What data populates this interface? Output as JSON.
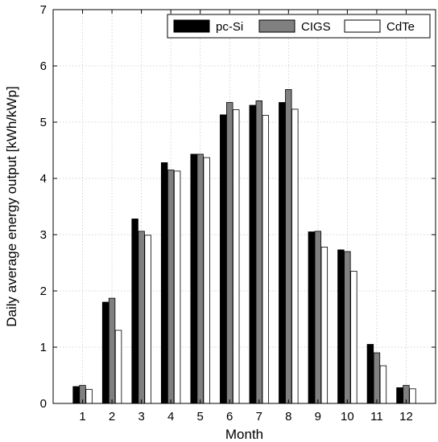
{
  "chart_data": {
    "type": "bar",
    "xlabel": "Month",
    "ylabel": "Daily average energy output [kWh/kWp]",
    "categories": [
      "1",
      "2",
      "3",
      "4",
      "5",
      "6",
      "7",
      "8",
      "9",
      "10",
      "11",
      "12"
    ],
    "ylim": [
      0,
      7
    ],
    "yticks": [
      "0",
      "1",
      "2",
      "3",
      "4",
      "5",
      "6",
      "7"
    ],
    "grid": true,
    "legend_position": "top-right",
    "series": [
      {
        "name": "pc-Si",
        "color": "#000000",
        "values": [
          0.3,
          1.8,
          3.28,
          4.28,
          4.43,
          5.13,
          5.3,
          5.35,
          3.05,
          2.73,
          1.05,
          0.28
        ]
      },
      {
        "name": "CIGS",
        "color": "#808080",
        "values": [
          0.32,
          1.87,
          3.06,
          4.15,
          4.43,
          5.35,
          5.38,
          5.58,
          3.06,
          2.7,
          0.9,
          0.32
        ]
      },
      {
        "name": "CdTe",
        "color": "#ffffff",
        "values": [
          0.25,
          1.3,
          2.99,
          4.13,
          4.37,
          5.22,
          5.12,
          5.23,
          2.78,
          2.35,
          0.67,
          0.26
        ]
      }
    ]
  }
}
